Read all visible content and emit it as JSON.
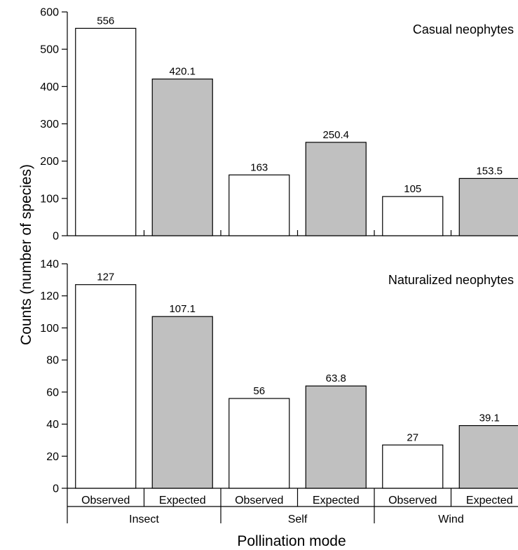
{
  "chart_data": {
    "type": "bar",
    "ylabel": "Counts (number of species)",
    "xlabel": "Pollination mode",
    "groups": [
      "Insect",
      "Self",
      "Wind"
    ],
    "categories": [
      "Observed",
      "Expected",
      "Observed",
      "Expected",
      "Observed",
      "Expected"
    ],
    "colors": {
      "observed": "#ffffff",
      "expected": "#c0c0c0",
      "outline": "#000000"
    },
    "panels": [
      {
        "title": "Casual neophytes",
        "ylim": [
          0,
          600
        ],
        "yticks": [
          0,
          100,
          200,
          300,
          400,
          500,
          600
        ],
        "series": [
          {
            "values": [
              556,
              163,
              105
            ]
          },
          {
            "values": [
              420.1,
              250.4,
              153.5
            ]
          }
        ],
        "labels": [
          "556",
          "420.1",
          "163",
          "250.4",
          "105",
          "153.5"
        ]
      },
      {
        "title": "Naturalized neophytes",
        "ylim": [
          0,
          140
        ],
        "yticks": [
          0,
          20,
          40,
          60,
          80,
          100,
          120,
          140
        ],
        "series": [
          {
            "values": [
              127,
              56,
              27
            ]
          },
          {
            "values": [
              107.1,
              63.8,
              39.1
            ]
          }
        ],
        "labels": [
          "127",
          "107.1",
          "56",
          "63.8",
          "27",
          "39.1"
        ]
      }
    ]
  }
}
